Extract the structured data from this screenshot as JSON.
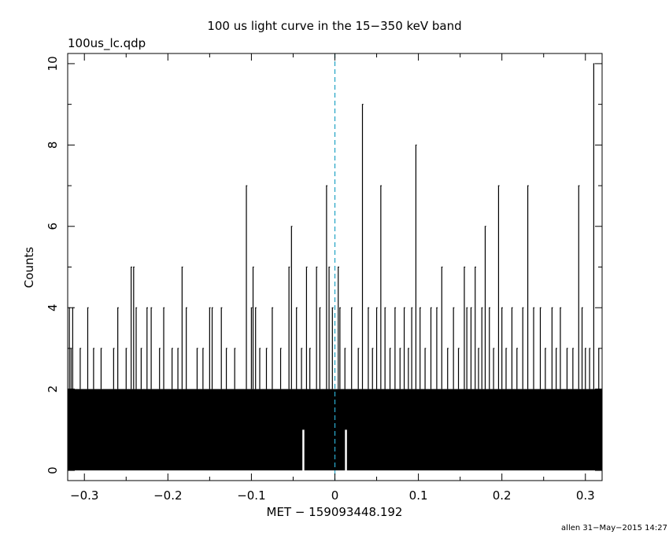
{
  "chart_data": {
    "type": "bar",
    "title": "100 us light curve in the 15−350 keV band",
    "subtitle": "100us_lc.qdp",
    "xlabel": "MET − 159093448.192",
    "ylabel": "Counts",
    "footer": "allen 31−May−2015 14:27",
    "xlim": [
      -0.32,
      0.32
    ],
    "ylim": [
      -0.25,
      10.25
    ],
    "x_ticks": [
      -0.3,
      -0.2,
      -0.1,
      0,
      0.1,
      0.2,
      0.3
    ],
    "x_tick_labels": [
      "−0.3",
      "−0.2",
      "−0.1",
      "0",
      "0.1",
      "0.2",
      "0.3"
    ],
    "y_ticks": [
      0,
      2,
      4,
      6,
      8,
      10
    ],
    "y_tick_labels": [
      "0",
      "2",
      "4",
      "6",
      "8",
      "10"
    ],
    "bin_width": 0.0001,
    "baseline_counts_range": [
      0,
      2
    ],
    "marker_x": 0,
    "marker_color": "#2aa6c7",
    "series_color": "#000000",
    "zero_count_gaps": [
      -0.038,
      0.013
    ],
    "notable_bins": [
      {
        "x": -0.318,
        "y": 4
      },
      {
        "x": -0.316,
        "y": 3
      },
      {
        "x": -0.314,
        "y": 4
      },
      {
        "x": -0.305,
        "y": 3
      },
      {
        "x": -0.296,
        "y": 4
      },
      {
        "x": -0.289,
        "y": 3
      },
      {
        "x": -0.28,
        "y": 3
      },
      {
        "x": -0.265,
        "y": 3
      },
      {
        "x": -0.26,
        "y": 4
      },
      {
        "x": -0.25,
        "y": 3
      },
      {
        "x": -0.244,
        "y": 5
      },
      {
        "x": -0.241,
        "y": 5
      },
      {
        "x": -0.238,
        "y": 4
      },
      {
        "x": -0.232,
        "y": 3
      },
      {
        "x": -0.225,
        "y": 4
      },
      {
        "x": -0.22,
        "y": 4
      },
      {
        "x": -0.21,
        "y": 3
      },
      {
        "x": -0.205,
        "y": 4
      },
      {
        "x": -0.195,
        "y": 3
      },
      {
        "x": -0.188,
        "y": 3
      },
      {
        "x": -0.183,
        "y": 5
      },
      {
        "x": -0.178,
        "y": 4
      },
      {
        "x": -0.165,
        "y": 3
      },
      {
        "x": -0.158,
        "y": 3
      },
      {
        "x": -0.15,
        "y": 4
      },
      {
        "x": -0.147,
        "y": 4
      },
      {
        "x": -0.136,
        "y": 4
      },
      {
        "x": -0.13,
        "y": 3
      },
      {
        "x": -0.12,
        "y": 3
      },
      {
        "x": -0.106,
        "y": 7
      },
      {
        "x": -0.1,
        "y": 4
      },
      {
        "x": -0.098,
        "y": 5
      },
      {
        "x": -0.095,
        "y": 4
      },
      {
        "x": -0.09,
        "y": 3
      },
      {
        "x": -0.082,
        "y": 3
      },
      {
        "x": -0.075,
        "y": 4
      },
      {
        "x": -0.065,
        "y": 3
      },
      {
        "x": -0.055,
        "y": 5
      },
      {
        "x": -0.052,
        "y": 6
      },
      {
        "x": -0.046,
        "y": 4
      },
      {
        "x": -0.04,
        "y": 3
      },
      {
        "x": -0.034,
        "y": 5
      },
      {
        "x": -0.03,
        "y": 3
      },
      {
        "x": -0.022,
        "y": 5
      },
      {
        "x": -0.018,
        "y": 4
      },
      {
        "x": -0.01,
        "y": 7
      },
      {
        "x": -0.007,
        "y": 5
      },
      {
        "x": -0.003,
        "y": 4
      },
      {
        "x": 0.004,
        "y": 5
      },
      {
        "x": 0.006,
        "y": 4
      },
      {
        "x": 0.012,
        "y": 3
      },
      {
        "x": 0.02,
        "y": 4
      },
      {
        "x": 0.028,
        "y": 3
      },
      {
        "x": 0.033,
        "y": 9
      },
      {
        "x": 0.04,
        "y": 4
      },
      {
        "x": 0.045,
        "y": 3
      },
      {
        "x": 0.05,
        "y": 4
      },
      {
        "x": 0.055,
        "y": 7
      },
      {
        "x": 0.06,
        "y": 4
      },
      {
        "x": 0.066,
        "y": 3
      },
      {
        "x": 0.072,
        "y": 4
      },
      {
        "x": 0.078,
        "y": 3
      },
      {
        "x": 0.083,
        "y": 4
      },
      {
        "x": 0.088,
        "y": 3
      },
      {
        "x": 0.092,
        "y": 4
      },
      {
        "x": 0.097,
        "y": 8
      },
      {
        "x": 0.102,
        "y": 4
      },
      {
        "x": 0.108,
        "y": 3
      },
      {
        "x": 0.115,
        "y": 4
      },
      {
        "x": 0.122,
        "y": 4
      },
      {
        "x": 0.128,
        "y": 5
      },
      {
        "x": 0.135,
        "y": 3
      },
      {
        "x": 0.142,
        "y": 4
      },
      {
        "x": 0.148,
        "y": 3
      },
      {
        "x": 0.155,
        "y": 5
      },
      {
        "x": 0.158,
        "y": 4
      },
      {
        "x": 0.163,
        "y": 4
      },
      {
        "x": 0.168,
        "y": 5
      },
      {
        "x": 0.172,
        "y": 3
      },
      {
        "x": 0.176,
        "y": 4
      },
      {
        "x": 0.18,
        "y": 6
      },
      {
        "x": 0.185,
        "y": 4
      },
      {
        "x": 0.19,
        "y": 3
      },
      {
        "x": 0.196,
        "y": 7
      },
      {
        "x": 0.2,
        "y": 4
      },
      {
        "x": 0.205,
        "y": 3
      },
      {
        "x": 0.212,
        "y": 4
      },
      {
        "x": 0.218,
        "y": 3
      },
      {
        "x": 0.225,
        "y": 4
      },
      {
        "x": 0.231,
        "y": 7
      },
      {
        "x": 0.238,
        "y": 4
      },
      {
        "x": 0.246,
        "y": 4
      },
      {
        "x": 0.252,
        "y": 3
      },
      {
        "x": 0.26,
        "y": 4
      },
      {
        "x": 0.265,
        "y": 3
      },
      {
        "x": 0.27,
        "y": 4
      },
      {
        "x": 0.278,
        "y": 3
      },
      {
        "x": 0.285,
        "y": 3
      },
      {
        "x": 0.292,
        "y": 7
      },
      {
        "x": 0.296,
        "y": 4
      },
      {
        "x": 0.3,
        "y": 3
      },
      {
        "x": 0.305,
        "y": 3
      },
      {
        "x": 0.31,
        "y": 10
      },
      {
        "x": 0.316,
        "y": 3
      }
    ]
  }
}
